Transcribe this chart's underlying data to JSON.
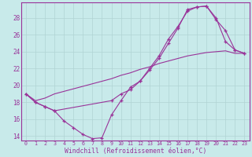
{
  "xlabel": "Windchill (Refroidissement éolien,°C)",
  "background_color": "#c8eaea",
  "line_color": "#993399",
  "grid_color": "#b0d4d4",
  "xlim": [
    -0.5,
    23.5
  ],
  "ylim": [
    13.5,
    29.8
  ],
  "ytick_values": [
    14,
    16,
    18,
    20,
    22,
    24,
    26,
    28
  ],
  "line1_x": [
    0,
    1,
    2,
    3,
    4,
    5,
    6,
    7,
    8,
    9,
    10,
    11,
    12,
    13,
    14,
    15,
    16,
    17,
    18,
    19,
    20,
    21,
    22,
    23
  ],
  "line1_y": [
    19.0,
    18.0,
    17.5,
    17.0,
    15.8,
    15.0,
    14.2,
    13.7,
    13.8,
    16.5,
    18.2,
    19.8,
    20.5,
    21.8,
    23.2,
    25.0,
    26.8,
    29.0,
    29.3,
    29.4,
    27.8,
    26.5,
    24.2,
    23.8
  ],
  "line2_x": [
    0,
    1,
    2,
    3,
    9,
    10,
    11,
    12,
    13,
    14,
    15,
    16,
    17,
    18,
    19,
    20,
    21,
    22,
    23
  ],
  "line2_y": [
    19.0,
    18.0,
    17.5,
    17.0,
    18.2,
    19.0,
    19.5,
    20.5,
    22.0,
    23.5,
    25.5,
    27.0,
    28.8,
    29.3,
    29.4,
    28.0,
    25.2,
    24.2,
    23.8
  ],
  "line3_x": [
    0,
    1,
    2,
    3,
    4,
    5,
    6,
    7,
    8,
    9,
    10,
    11,
    12,
    13,
    14,
    15,
    16,
    17,
    18,
    19,
    20,
    21,
    22,
    23
  ],
  "line3_y": [
    19.0,
    18.2,
    18.5,
    19.0,
    19.3,
    19.6,
    19.9,
    20.2,
    20.5,
    20.8,
    21.2,
    21.5,
    21.9,
    22.2,
    22.6,
    22.9,
    23.2,
    23.5,
    23.7,
    23.9,
    24.0,
    24.1,
    23.8,
    23.8
  ]
}
